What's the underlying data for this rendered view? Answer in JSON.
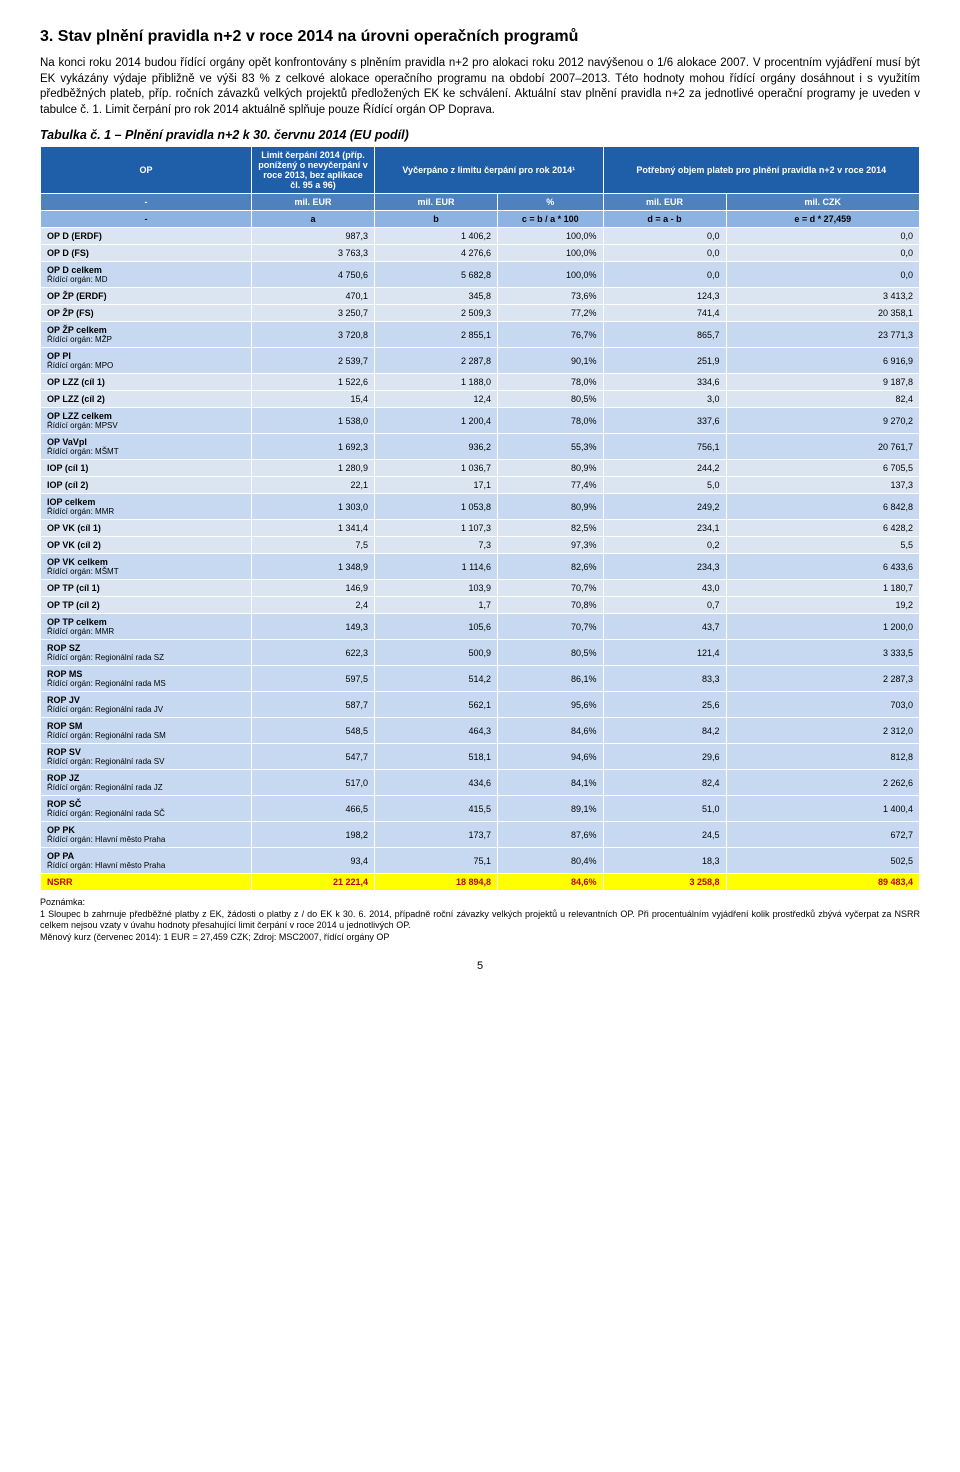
{
  "heading": "3. Stav plnění pravidla n+2 v roce 2014 na úrovni operačních programů",
  "para1": "Na konci roku 2014 budou řídící orgány opět konfrontovány s plněním pravidla n+2 pro alokaci roku 2012 navýšenou o 1/6 alokace 2007. V procentním vyjádření musí být EK vykázány výdaje přibližně ve výši 83 % z celkové alokace operačního programu na období 2007–2013. Této hodnoty mohou řídící orgány dosáhnout i s využitím předběžných plateb, příp. ročních závazků velkých projektů předložených EK ke schválení. Aktuální stav plnění pravidla n+2 za jednotlivé operační programy je uveden v tabulce č. 1. Limit čerpání pro rok 2014 aktuálně splňuje pouze Řídící orgán OP Doprava.",
  "tableCaption": "Tabulka č. 1 – Plnění pravidla n+2 k 30. červnu 2014 (EU podíl)",
  "headerRow1": {
    "c0": "OP",
    "c1": "Limit čerpání 2014 (příp. ponížený o nevyčerpání v roce 2013, bez aplikace čl. 95 a 96)",
    "c2": "Vyčerpáno z limitu čerpání pro rok 2014¹",
    "c3": "Potřebný objem plateb pro plnění pravidla n+2 v roce 2014"
  },
  "headerRow2": {
    "c0": "-",
    "c1": "mil. EUR",
    "c2": "mil. EUR",
    "c3": "%",
    "c4": "mil. EUR",
    "c5": "mil. CZK"
  },
  "headerRow3": {
    "c0": "-",
    "c1": "a",
    "c2": "b",
    "c3": "c = b / a * 100",
    "c4": "d = a - b",
    "c5": "e = d * 27,459"
  },
  "colors": {
    "headerBg": "#1f5ea8",
    "headerFg": "#ffffff",
    "subHeaderBg": "#4f81bd",
    "formulaBg": "#8db3e2",
    "stripeA": "#dbe5f1",
    "stripeB": "#c6d9f0",
    "totalBg": "#ffff00",
    "totalFg": "#c00000"
  },
  "rows": [
    {
      "name": "OP D (ERDF)",
      "a": "987,3",
      "b": "1 406,2",
      "c": "100,0%",
      "d": "0,0",
      "e": "0,0",
      "stripe": "A"
    },
    {
      "name": "OP D (FS)",
      "a": "3 763,3",
      "b": "4 276,6",
      "c": "100,0%",
      "d": "0,0",
      "e": "0,0",
      "stripe": "A"
    },
    {
      "name": "OP D celkem",
      "sub": "Řídící orgán: MD",
      "a": "4 750,6",
      "b": "5 682,8",
      "c": "100,0%",
      "d": "0,0",
      "e": "0,0",
      "stripe": "B"
    },
    {
      "name": "OP ŽP (ERDF)",
      "a": "470,1",
      "b": "345,8",
      "c": "73,6%",
      "d": "124,3",
      "e": "3 413,2",
      "stripe": "A"
    },
    {
      "name": "OP ŽP (FS)",
      "a": "3 250,7",
      "b": "2 509,3",
      "c": "77,2%",
      "d": "741,4",
      "e": "20 358,1",
      "stripe": "A"
    },
    {
      "name": "OP ŽP celkem",
      "sub": "Řídící orgán: MŽP",
      "a": "3 720,8",
      "b": "2 855,1",
      "c": "76,7%",
      "d": "865,7",
      "e": "23 771,3",
      "stripe": "B"
    },
    {
      "name": "OP PI",
      "sub": "Řídící orgán: MPO",
      "a": "2 539,7",
      "b": "2 287,8",
      "c": "90,1%",
      "d": "251,9",
      "e": "6 916,9",
      "stripe": "B"
    },
    {
      "name": "OP LZZ (cíl 1)",
      "a": "1 522,6",
      "b": "1 188,0",
      "c": "78,0%",
      "d": "334,6",
      "e": "9 187,8",
      "stripe": "A"
    },
    {
      "name": "OP LZZ (cíl 2)",
      "a": "15,4",
      "b": "12,4",
      "c": "80,5%",
      "d": "3,0",
      "e": "82,4",
      "stripe": "A"
    },
    {
      "name": "OP LZZ celkem",
      "sub": "Řídící orgán: MPSV",
      "a": "1 538,0",
      "b": "1 200,4",
      "c": "78,0%",
      "d": "337,6",
      "e": "9 270,2",
      "stripe": "B"
    },
    {
      "name": "OP VaVpI",
      "sub": "Řídící orgán: MŠMT",
      "a": "1 692,3",
      "b": "936,2",
      "c": "55,3%",
      "d": "756,1",
      "e": "20 761,7",
      "stripe": "B"
    },
    {
      "name": "IOP (cíl 1)",
      "a": "1 280,9",
      "b": "1 036,7",
      "c": "80,9%",
      "d": "244,2",
      "e": "6 705,5",
      "stripe": "A"
    },
    {
      "name": "IOP (cíl 2)",
      "a": "22,1",
      "b": "17,1",
      "c": "77,4%",
      "d": "5,0",
      "e": "137,3",
      "stripe": "A"
    },
    {
      "name": "IOP celkem",
      "sub": "Řídící orgán: MMR",
      "a": "1 303,0",
      "b": "1 053,8",
      "c": "80,9%",
      "d": "249,2",
      "e": "6 842,8",
      "stripe": "B"
    },
    {
      "name": "OP VK (cíl 1)",
      "a": "1 341,4",
      "b": "1 107,3",
      "c": "82,5%",
      "d": "234,1",
      "e": "6 428,2",
      "stripe": "A"
    },
    {
      "name": "OP VK (cíl 2)",
      "a": "7,5",
      "b": "7,3",
      "c": "97,3%",
      "d": "0,2",
      "e": "5,5",
      "stripe": "A"
    },
    {
      "name": "OP VK celkem",
      "sub": "Řídící orgán: MŠMT",
      "a": "1 348,9",
      "b": "1 114,6",
      "c": "82,6%",
      "d": "234,3",
      "e": "6 433,6",
      "stripe": "B"
    },
    {
      "name": "OP TP (cíl 1)",
      "a": "146,9",
      "b": "103,9",
      "c": "70,7%",
      "d": "43,0",
      "e": "1 180,7",
      "stripe": "A"
    },
    {
      "name": "OP TP (cíl 2)",
      "a": "2,4",
      "b": "1,7",
      "c": "70,8%",
      "d": "0,7",
      "e": "19,2",
      "stripe": "A"
    },
    {
      "name": "OP TP celkem",
      "sub": "Řídící orgán: MMR",
      "a": "149,3",
      "b": "105,6",
      "c": "70,7%",
      "d": "43,7",
      "e": "1 200,0",
      "stripe": "B"
    },
    {
      "name": "ROP SZ",
      "sub": "Řídící orgán: Regionální rada SZ",
      "a": "622,3",
      "b": "500,9",
      "c": "80,5%",
      "d": "121,4",
      "e": "3 333,5",
      "stripe": "B"
    },
    {
      "name": "ROP MS",
      "sub": "Řídící orgán: Regionální rada MS",
      "a": "597,5",
      "b": "514,2",
      "c": "86,1%",
      "d": "83,3",
      "e": "2 287,3",
      "stripe": "B"
    },
    {
      "name": "ROP JV",
      "sub": "Řídící orgán: Regionální rada JV",
      "a": "587,7",
      "b": "562,1",
      "c": "95,6%",
      "d": "25,6",
      "e": "703,0",
      "stripe": "B"
    },
    {
      "name": "ROP SM",
      "sub": "Řídící orgán: Regionální rada SM",
      "a": "548,5",
      "b": "464,3",
      "c": "84,6%",
      "d": "84,2",
      "e": "2 312,0",
      "stripe": "B"
    },
    {
      "name": "ROP SV",
      "sub": "Řídící orgán: Regionální rada SV",
      "a": "547,7",
      "b": "518,1",
      "c": "94,6%",
      "d": "29,6",
      "e": "812,8",
      "stripe": "B"
    },
    {
      "name": "ROP JZ",
      "sub": "Řídící orgán: Regionální rada JZ",
      "a": "517,0",
      "b": "434,6",
      "c": "84,1%",
      "d": "82,4",
      "e": "2 262,6",
      "stripe": "B"
    },
    {
      "name": "ROP SČ",
      "sub": "Řídící orgán: Regionální rada SČ",
      "a": "466,5",
      "b": "415,5",
      "c": "89,1%",
      "d": "51,0",
      "e": "1 400,4",
      "stripe": "B"
    },
    {
      "name": "OP PK",
      "sub": "Řídící orgán: Hlavní město Praha",
      "a": "198,2",
      "b": "173,7",
      "c": "87,6%",
      "d": "24,5",
      "e": "672,7",
      "stripe": "B"
    },
    {
      "name": "OP PA",
      "sub": "Řídící orgán: Hlavní město Praha",
      "a": "93,4",
      "b": "75,1",
      "c": "80,4%",
      "d": "18,3",
      "e": "502,5",
      "stripe": "B"
    }
  ],
  "totalRow": {
    "name": "NSRR",
    "a": "21 221,4",
    "b": "18 894,8",
    "c": "84,6%",
    "d": "3 258,8",
    "e": "89 483,4"
  },
  "footnoteLabel": "Poznámka:",
  "footnote1": "1 Sloupec b zahrnuje předběžné platby z EK, žádosti o platby z / do EK k 30. 6. 2014, případně roční závazky velkých projektů u relevantních OP. Při procentuálním vyjádření kolik prostředků zbývá vyčerpat za NSRR celkem nejsou vzaty v úvahu hodnoty přesahující limit čerpání v roce 2014 u jednotlivých OP.",
  "footnote2": "Měnový kurz (červenec 2014): 1 EUR = 27,459 CZK; Zdroj: MSC2007, řídící orgány OP",
  "pageNumber": "5"
}
